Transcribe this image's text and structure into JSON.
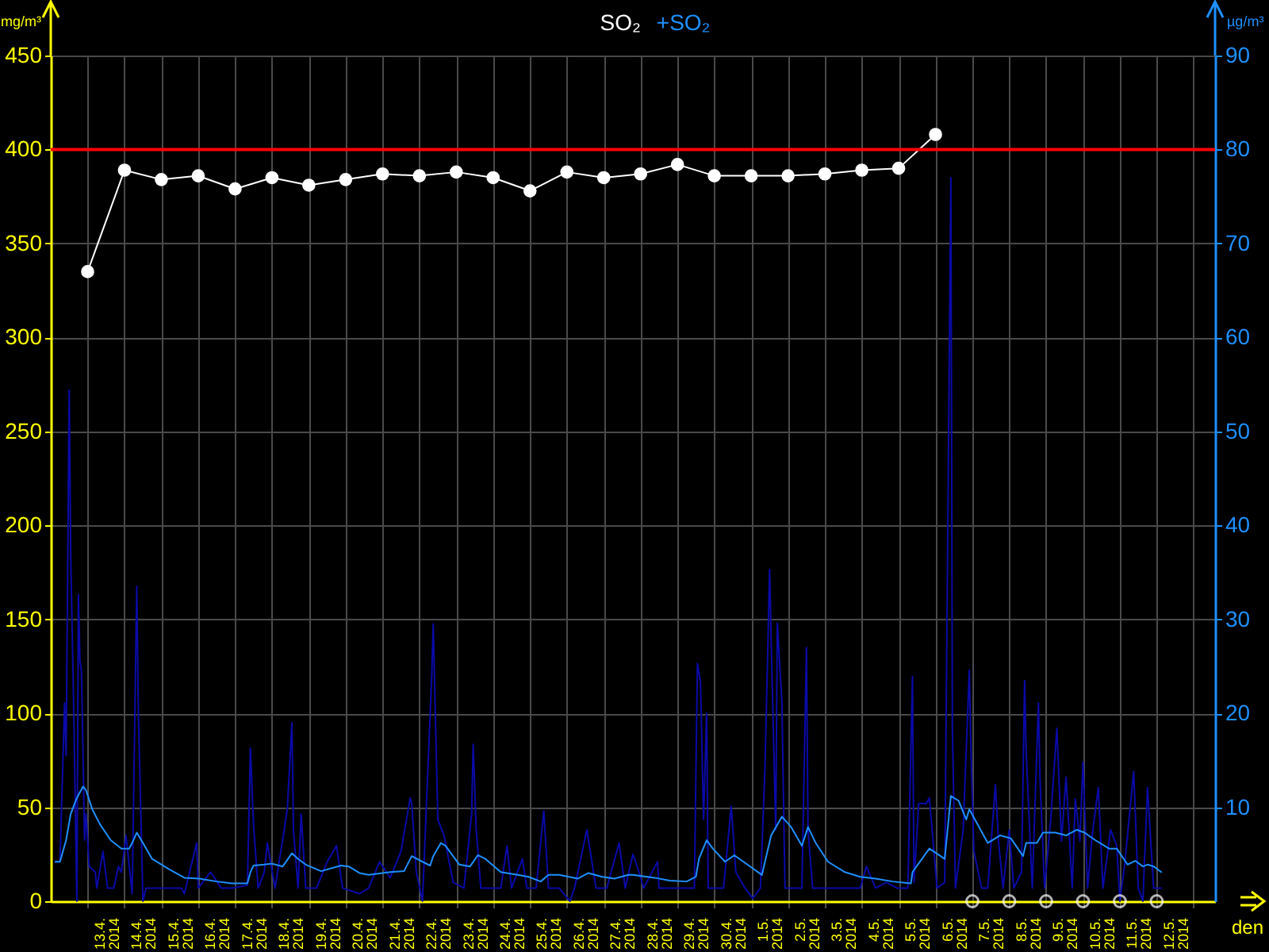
{
  "chart_data": {
    "type": "line",
    "xlabel": "den",
    "ylabel": "mg/m³",
    "y2label": "µg/m³",
    "legend": "top",
    "grid": true,
    "marker": "circle",
    "xlim": [
      "2014-04-12T00:00",
      "2014-05-13T14:00"
    ],
    "xticks": [
      {
        "value": "2014-04-13T00:00",
        "label": null
      },
      {
        "value": "2014-04-13T12:00",
        "label": "13.4. 2014"
      },
      {
        "value": "2014-04-14T00:00",
        "label": null
      },
      {
        "value": "2014-04-14T12:00",
        "label": "14.4. 2014"
      },
      {
        "value": "2014-04-15T00:00",
        "label": null
      },
      {
        "value": "2014-04-15T12:00",
        "label": "15.4. 2014"
      },
      {
        "value": "2014-04-16T00:00",
        "label": null
      },
      {
        "value": "2014-04-16T12:00",
        "label": "16.4. 2014"
      },
      {
        "value": "2014-04-17T00:00",
        "label": null
      },
      {
        "value": "2014-04-17T12:00",
        "label": "17.4. 2014"
      },
      {
        "value": "2014-04-18T00:00",
        "label": null
      },
      {
        "value": "2014-04-18T12:00",
        "label": "18.4. 2014"
      },
      {
        "value": "2014-04-19T00:00",
        "label": null
      },
      {
        "value": "2014-04-19T12:00",
        "label": "19.4. 2014"
      },
      {
        "value": "2014-04-20T00:00",
        "label": null
      },
      {
        "value": "2014-04-20T12:00",
        "label": "20.4. 2014"
      },
      {
        "value": "2014-04-21T00:00",
        "label": null
      },
      {
        "value": "2014-04-21T12:00",
        "label": "21.4. 2014"
      },
      {
        "value": "2014-04-22T00:00",
        "label": null
      },
      {
        "value": "2014-04-22T12:00",
        "label": "22.4. 2014"
      },
      {
        "value": "2014-04-23T00:00",
        "label": null
      },
      {
        "value": "2014-04-23T12:00",
        "label": "23.4. 2014"
      },
      {
        "value": "2014-04-24T00:00",
        "label": null
      },
      {
        "value": "2014-04-24T12:00",
        "label": "24.4. 2014"
      },
      {
        "value": "2014-04-25T00:00",
        "label": null
      },
      {
        "value": "2014-04-25T12:00",
        "label": "25.4. 2014"
      },
      {
        "value": "2014-04-26T00:00",
        "label": null
      },
      {
        "value": "2014-04-26T12:00",
        "label": "26.4. 2014"
      },
      {
        "value": "2014-04-27T00:00",
        "label": null
      },
      {
        "value": "2014-04-27T12:00",
        "label": "27.4. 2014"
      },
      {
        "value": "2014-04-28T00:00",
        "label": null
      },
      {
        "value": "2014-04-28T12:00",
        "label": "28.4. 2014"
      },
      {
        "value": "2014-04-29T00:00",
        "label": null
      },
      {
        "value": "2014-04-29T12:00",
        "label": "29.4. 2014"
      },
      {
        "value": "2014-04-30T00:00",
        "label": null
      },
      {
        "value": "2014-04-30T12:00",
        "label": "30.4. 2014"
      },
      {
        "value": "2014-05-01T00:00",
        "label": null
      },
      {
        "value": "2014-05-01T12:00",
        "label": "1.5. 2014"
      },
      {
        "value": "2014-05-02T00:00",
        "label": null
      },
      {
        "value": "2014-05-02T12:00",
        "label": "2.5. 2014"
      },
      {
        "value": "2014-05-03T00:00",
        "label": null
      },
      {
        "value": "2014-05-03T12:00",
        "label": "3.5. 2014"
      },
      {
        "value": "2014-05-04T00:00",
        "label": null
      },
      {
        "value": "2014-05-04T12:00",
        "label": "4.5. 2014"
      },
      {
        "value": "2014-05-05T00:00",
        "label": null
      },
      {
        "value": "2014-05-05T12:00",
        "label": "5.5. 2014"
      },
      {
        "value": "2014-05-06T00:00",
        "label": null
      },
      {
        "value": "2014-05-06T12:00",
        "label": "6.5. 2014"
      },
      {
        "value": "2014-05-07T00:00",
        "label": null
      },
      {
        "value": "2014-05-07T12:00",
        "label": "7.5. 2014"
      },
      {
        "value": "2014-05-08T00:00",
        "label": null
      },
      {
        "value": "2014-05-08T12:00",
        "label": "8.5. 2014"
      },
      {
        "value": "2014-05-09T00:00",
        "label": null
      },
      {
        "value": "2014-05-09T12:00",
        "label": "9.5. 2014"
      },
      {
        "value": "2014-05-10T00:00",
        "label": null
      },
      {
        "value": "2014-05-10T12:00",
        "label": "10.5. 2014"
      },
      {
        "value": "2014-05-11T00:00",
        "label": null
      },
      {
        "value": "2014-05-11T12:00",
        "label": "11.5. 2014"
      },
      {
        "value": "2014-05-12T00:00",
        "label": null
      },
      {
        "value": "2014-05-12T12:00",
        "label": "12.5. 2014"
      },
      {
        "value": "2014-05-13T00:00",
        "label": null
      }
    ],
    "ylim": [
      0,
      450
    ],
    "yticks": [
      0,
      50,
      100,
      150,
      200,
      250,
      300,
      350,
      400,
      450
    ],
    "y2lim": [
      0,
      90
    ],
    "y2ticks": [
      10,
      20,
      30,
      40,
      50,
      60,
      70,
      80,
      90
    ],
    "ref_lines": [
      {
        "axis": "y",
        "value": 400,
        "color": "#ff0000"
      }
    ],
    "series": [
      {
        "name": "SO₂",
        "type": "line",
        "color": "#ffffff",
        "x": [
          "2014-04-13T00:00",
          "2014-04-14T00:00",
          "2014-04-15T00:00",
          "2014-04-16T00:00",
          "2014-04-17T00:00",
          "2014-04-18T00:00",
          "2014-04-19T00:00",
          "2014-04-20T00:00",
          "2014-04-21T00:00",
          "2014-04-22T00:00",
          "2014-04-23T00:00",
          "2014-04-24T00:00",
          "2014-04-25T00:00",
          "2014-04-26T00:00",
          "2014-04-27T00:00",
          "2014-04-28T00:00",
          "2014-04-29T00:00",
          "2014-04-30T00:00",
          "2014-05-01T00:00",
          "2014-05-02T00:00",
          "2014-05-03T00:00",
          "2014-05-04T00:00",
          "2014-05-05T00:00",
          "2014-05-06T00:00"
        ],
        "values": [
          335,
          389,
          384,
          386,
          379,
          385,
          381,
          384,
          387,
          386,
          388,
          385,
          378,
          388,
          385,
          387,
          392,
          386,
          386,
          386,
          387,
          389,
          390,
          408
        ]
      },
      {
        "type": "scatter",
        "color": "#ffffff",
        "x": [
          "2014-05-07T00:00",
          "2014-05-08T00:00",
          "2014-05-09T00:00",
          "2014-05-10T00:00",
          "2014-05-11T00:00",
          "2014-05-12T00:00"
        ],
        "values": [
          0,
          0,
          0,
          0,
          0,
          0
        ]
      },
      {
        "type": "line",
        "color": "#0a0aa8",
        "axis": "y2",
        "marker": "none",
        "x": [
          "2014-04-12T03:00",
          "2014-04-12T06:00",
          "2014-04-12T09:00",
          "2014-04-12T10:00",
          "2014-04-12T12:00",
          "2014-04-12T13:00",
          "2014-04-12T15:00",
          "2014-04-12T17:00",
          "2014-04-12T18:00",
          "2014-04-12T19:00",
          "2014-04-12T20:00",
          "2014-04-12T22:00",
          "2014-04-12T23:00",
          "2014-04-13T01:00",
          "2014-04-13T05:00",
          "2014-04-13T06:00",
          "2014-04-13T10:00",
          "2014-04-13T13:00",
          "2014-04-13T17:00",
          "2014-04-13T20:00",
          "2014-04-13T22:00",
          "2014-04-14T01:00",
          "2014-04-14T05:00",
          "2014-04-14T08:00",
          "2014-04-14T09:00",
          "2014-04-14T12:00",
          "2014-04-14T14:00",
          "2014-04-14T22:00",
          "2014-04-15T05:00",
          "2014-04-15T13:00",
          "2014-04-15T15:00",
          "2014-04-15T23:00",
          "2014-04-16T00:00",
          "2014-04-16T08:00",
          "2014-04-16T15:00",
          "2014-04-16T22:00",
          "2014-04-17T08:00",
          "2014-04-17T10:00",
          "2014-04-17T12:00",
          "2014-04-17T15:00",
          "2014-04-17T19:00",
          "2014-04-17T21:00",
          "2014-04-18T02:00",
          "2014-04-18T08:00",
          "2014-04-18T10:00",
          "2014-04-18T13:00",
          "2014-04-18T14:00",
          "2014-04-18T17:00",
          "2014-04-18T19:00",
          "2014-04-18T22:00",
          "2014-04-19T05:00",
          "2014-04-19T12:00",
          "2014-04-19T18:00",
          "2014-04-19T22:00",
          "2014-04-20T09:00",
          "2014-04-20T15:00",
          "2014-04-20T22:00",
          "2014-04-21T05:00",
          "2014-04-21T12:00",
          "2014-04-21T18:00",
          "2014-04-21T19:00",
          "2014-04-21T22:00",
          "2014-04-22T02:00",
          "2014-04-22T08:00",
          "2014-04-22T09:00",
          "2014-04-22T11:00",
          "2014-04-22T12:00",
          "2014-04-22T16:00",
          "2014-04-22T22:00",
          "2014-04-23T05:00",
          "2014-04-23T10:00",
          "2014-04-23T11:00",
          "2014-04-23T13:00",
          "2014-04-23T16:00",
          "2014-04-23T22:00",
          "2014-04-24T05:00",
          "2014-04-24T09:00",
          "2014-04-24T12:00",
          "2014-04-24T19:00",
          "2014-04-24T22:00",
          "2014-04-25T04:00",
          "2014-04-25T09:00",
          "2014-04-25T12:00",
          "2014-04-25T19:00",
          "2014-04-26T02:00",
          "2014-04-26T05:00",
          "2014-04-26T13:00",
          "2014-04-26T19:00",
          "2014-04-27T02:00",
          "2014-04-27T10:00",
          "2014-04-27T14:00",
          "2014-04-27T19:00",
          "2014-04-27T23:00",
          "2014-04-28T02:00",
          "2014-04-28T11:00",
          "2014-04-28T12:00",
          "2014-04-28T19:00",
          "2014-04-29T06:00",
          "2014-04-29T11:00",
          "2014-04-29T13:00",
          "2014-04-29T15:00",
          "2014-04-29T17:00",
          "2014-04-29T19:00",
          "2014-04-29T20:00",
          "2014-04-29T23:00",
          "2014-04-30T06:00",
          "2014-04-30T11:00",
          "2014-04-30T14:00",
          "2014-04-30T20:00",
          "2014-05-01T01:00",
          "2014-05-01T06:00",
          "2014-05-01T09:00",
          "2014-05-01T12:00",
          "2014-05-01T13:00",
          "2014-05-01T16:00",
          "2014-05-01T17:00",
          "2014-05-01T20:00",
          "2014-05-01T22:00",
          "2014-05-02T02:00",
          "2014-05-02T09:00",
          "2014-05-02T12:00",
          "2014-05-02T13:00",
          "2014-05-02T16:00",
          "2014-05-02T23:00",
          "2014-05-03T13:00",
          "2014-05-03T23:00",
          "2014-05-04T03:00",
          "2014-05-04T09:00",
          "2014-05-04T16:00",
          "2014-05-04T23:00",
          "2014-05-05T06:00",
          "2014-05-05T09:00",
          "2014-05-05T10:00",
          "2014-05-05T13:00",
          "2014-05-05T18:00",
          "2014-05-05T20:00",
          "2014-05-06T01:00",
          "2014-05-06T06:00",
          "2014-05-06T08:00",
          "2014-05-06T10:00",
          "2014-05-06T11:00",
          "2014-05-06T13:00",
          "2014-05-06T18:00",
          "2014-05-06T22:00",
          "2014-05-06T23:00",
          "2014-05-07T01:00",
          "2014-05-07T06:00",
          "2014-05-07T10:00",
          "2014-05-07T15:00",
          "2014-05-07T17:00",
          "2014-05-07T20:00",
          "2014-05-08T00:00",
          "2014-05-08T03:00",
          "2014-05-08T08:00",
          "2014-05-08T10:00",
          "2014-05-08T11:00",
          "2014-05-08T15:00",
          "2014-05-08T19:00",
          "2014-05-08T20:00",
          "2014-05-08T23:00",
          "2014-05-09T03:00",
          "2014-05-09T07:00",
          "2014-05-09T10:00",
          "2014-05-09T13:00",
          "2014-05-09T17:00",
          "2014-05-09T19:00",
          "2014-05-09T22:00",
          "2014-05-10T00:00",
          "2014-05-10T03:00",
          "2014-05-10T06:00",
          "2014-05-10T10:00",
          "2014-05-10T13:00",
          "2014-05-10T18:00",
          "2014-05-10T22:00",
          "2014-05-11T00:00",
          "2014-05-11T03:00",
          "2014-05-11T09:00",
          "2014-05-11T12:00",
          "2014-05-11T15:00",
          "2014-05-11T18:00",
          "2014-05-11T22:00",
          "2014-05-12T03:00"
        ],
        "values": [
          4.2,
          4.2,
          21.1,
          15.5,
          54.4,
          36.8,
          20.0,
          0,
          32.6,
          25.6,
          24.5,
          6.5,
          9.3,
          3.7,
          3.1,
          1.4,
          5.3,
          1.4,
          1.4,
          3.7,
          3.1,
          7.0,
          0.8,
          33.5,
          20.5,
          0,
          1.4,
          1.4,
          1.4,
          1.4,
          0.8,
          6.2,
          1.4,
          3.1,
          1.4,
          1.4,
          1.7,
          16.3,
          8.1,
          1.4,
          3.1,
          6.2,
          1.4,
          7.6,
          9.8,
          19.0,
          7.6,
          1.4,
          9.3,
          1.4,
          1.4,
          4.2,
          5.9,
          1.4,
          0.8,
          1.4,
          4.2,
          2.5,
          5.3,
          11.0,
          10.4,
          3.1,
          0,
          23.9,
          29.5,
          15.5,
          8.7,
          7.0,
          2.0,
          1.4,
          9.3,
          16.7,
          7.6,
          1.4,
          1.4,
          1.4,
          5.9,
          1.4,
          4.5,
          1.4,
          1.4,
          9.6,
          1.4,
          1.4,
          0,
          1.4,
          7.6,
          1.4,
          1.4,
          6.2,
          1.4,
          5.0,
          3.1,
          1.4,
          4.2,
          1.4,
          1.4,
          1.4,
          1.4,
          25.3,
          23.3,
          8.7,
          20.0,
          1.4,
          1.4,
          1.4,
          10.1,
          3.1,
          1.4,
          0.3,
          1.4,
          14.3,
          35.3,
          27.8,
          7.6,
          29.6,
          21.1,
          1.4,
          1.4,
          1.4,
          27.0,
          7.6,
          1.4,
          1.4,
          1.4,
          1.4,
          3.7,
          1.4,
          2.0,
          1.4,
          1.4,
          23.9,
          2.0,
          10.4,
          10.4,
          11.0,
          1.4,
          2.0,
          39.7,
          77,
          18.3,
          1.4,
          7.6,
          24.6,
          16.6,
          5.3,
          1.4,
          1.4,
          12.4,
          6.4,
          1.4,
          7.6,
          1.4,
          3.1,
          23.5,
          16.0,
          1.4,
          21.1,
          13.2,
          1.4,
          8.7,
          18.4,
          6.4,
          13.2,
          1.4,
          10.9,
          6.4,
          14.8,
          1.4,
          7.0,
          12.1,
          1.4,
          7.6,
          5.9,
          0,
          3.7,
          13.8,
          1.4,
          0,
          12.1,
          1.4,
          1.4
        ]
      },
      {
        "name": "+SO₂",
        "type": "line",
        "color": "#1e90ff",
        "axis": "y2",
        "marker": "none",
        "x": [
          "2014-04-12T03:00",
          "2014-04-12T06:00",
          "2014-04-12T10:00",
          "2014-04-12T13:00",
          "2014-04-12T17:00",
          "2014-04-12T21:00",
          "2014-04-12T23:00",
          "2014-04-13T03:00",
          "2014-04-13T08:00",
          "2014-04-13T15:00",
          "2014-04-13T22:00",
          "2014-04-14T03:00",
          "2014-04-14T05:00",
          "2014-04-14T08:00",
          "2014-04-14T12:00",
          "2014-04-14T18:00",
          "2014-04-15T05:00",
          "2014-04-15T15:00",
          "2014-04-16T01:00",
          "2014-04-16T12:00",
          "2014-04-16T22:00",
          "2014-04-17T08:00",
          "2014-04-17T10:00",
          "2014-04-17T12:00",
          "2014-04-17T19:00",
          "2014-04-18T00:00",
          "2014-04-18T07:00",
          "2014-04-18T13:00",
          "2014-04-18T17:00",
          "2014-04-18T22:00",
          "2014-04-19T08:00",
          "2014-04-19T21:00",
          "2014-04-20T02:00",
          "2014-04-20T09:00",
          "2014-04-20T15:00",
          "2014-04-21T05:00",
          "2014-04-21T14:00",
          "2014-04-21T19:00",
          "2014-04-22T02:00",
          "2014-04-22T07:00",
          "2014-04-22T09:00",
          "2014-04-22T14:00",
          "2014-04-22T17:00",
          "2014-04-23T02:00",
          "2014-04-23T09:00",
          "2014-04-23T14:00",
          "2014-04-23T19:00",
          "2014-04-24T05:00",
          "2014-04-24T16:00",
          "2014-04-24T23:00",
          "2014-04-25T07:00",
          "2014-04-25T12:00",
          "2014-04-25T19:00",
          "2014-04-26T07:00",
          "2014-04-26T14:00",
          "2014-04-26T23:00",
          "2014-04-27T07:00",
          "2014-04-27T16:00",
          "2014-04-27T19:00",
          "2014-04-28T09:00",
          "2014-04-28T19:00",
          "2014-04-29T06:00",
          "2014-04-29T12:00",
          "2014-04-29T14:00",
          "2014-04-29T19:00",
          "2014-04-29T23:00",
          "2014-04-30T07:00",
          "2014-04-30T13:00",
          "2014-04-30T19:00",
          "2014-05-01T07:00",
          "2014-05-01T13:00",
          "2014-05-01T20:00",
          "2014-05-02T02:00",
          "2014-05-02T09:00",
          "2014-05-02T13:00",
          "2014-05-02T18:00",
          "2014-05-03T02:00",
          "2014-05-03T13:00",
          "2014-05-03T23:00",
          "2014-05-04T09:00",
          "2014-05-04T20:00",
          "2014-05-05T08:00",
          "2014-05-05T09:00",
          "2014-05-05T20:00",
          "2014-05-06T06:00",
          "2014-05-06T10:00",
          "2014-05-06T15:00",
          "2014-05-06T20:00",
          "2014-05-06T22:00",
          "2014-05-07T10:00",
          "2014-05-07T18:00",
          "2014-05-08T01:00",
          "2014-05-08T09:00",
          "2014-05-08T11:00",
          "2014-05-08T18:00",
          "2014-05-08T22:00",
          "2014-05-09T06:00",
          "2014-05-09T13:00",
          "2014-05-09T20:00",
          "2014-05-10T01:00",
          "2014-05-10T08:00",
          "2014-05-10T17:00",
          "2014-05-10T22:00",
          "2014-05-11T05:00",
          "2014-05-11T10:00",
          "2014-05-11T15:00",
          "2014-05-11T18:00",
          "2014-05-11T22:00",
          "2014-05-12T03:00"
        ],
        "values": [
          4.2,
          4.2,
          6.5,
          9.3,
          11.0,
          12.2,
          11.8,
          9.8,
          8.2,
          6.5,
          5.6,
          5.6,
          6.2,
          7.3,
          6.2,
          4.5,
          3.4,
          2.5,
          2.4,
          2.1,
          1.9,
          1.9,
          3.1,
          3.8,
          3.9,
          4.0,
          3.7,
          5.1,
          4.5,
          3.9,
          3.2,
          3.8,
          3.7,
          3.0,
          2.8,
          3.1,
          3.2,
          4.8,
          4.2,
          3.8,
          4.8,
          6.2,
          5.9,
          3.9,
          3.7,
          4.9,
          4.5,
          3.1,
          2.8,
          2.6,
          2.1,
          2.8,
          2.8,
          2.4,
          3.0,
          2.6,
          2.4,
          2.8,
          2.8,
          2.5,
          2.2,
          2.1,
          2.6,
          4.5,
          6.5,
          5.6,
          4.2,
          4.9,
          4.2,
          2.8,
          7.0,
          9.0,
          7.9,
          5.9,
          7.9,
          6.2,
          4.2,
          3.1,
          2.6,
          2.4,
          2.1,
          1.9,
          3.1,
          5.6,
          4.5,
          11.2,
          10.7,
          8.7,
          9.8,
          6.2,
          7.0,
          6.7,
          4.8,
          6.2,
          6.2,
          7.3,
          7.3,
          7.0,
          7.6,
          7.3,
          6.5,
          5.6,
          5.6,
          3.9,
          4.3,
          3.7,
          3.9,
          3.7,
          3.1
        ]
      }
    ]
  }
}
